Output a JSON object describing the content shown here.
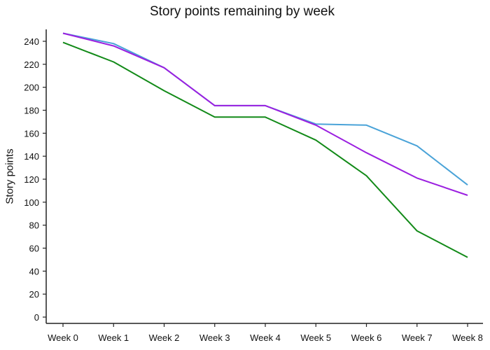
{
  "chart_data": {
    "type": "line",
    "title": "Story points remaining by week",
    "xlabel": "",
    "ylabel": "Story points",
    "categories": [
      "Week 0",
      "Week 1",
      "Week 2",
      "Week 3",
      "Week 4",
      "Week 5",
      "Week 6",
      "Week 7",
      "Week 8"
    ],
    "ylim": [
      -5,
      252
    ],
    "yticks": [
      0,
      20,
      40,
      60,
      80,
      100,
      120,
      140,
      160,
      180,
      200,
      220,
      240
    ],
    "grid": false,
    "legend": "none",
    "series": [
      {
        "color": "#4aa3d8",
        "values": [
          247,
          238,
          217,
          184,
          184,
          168,
          167,
          149,
          115
        ]
      },
      {
        "color": "#9b1fe0",
        "values": [
          247,
          236,
          217,
          184,
          184,
          167,
          143,
          121,
          106
        ]
      },
      {
        "color": "#128a18",
        "values": [
          239,
          222,
          197,
          174,
          174,
          154,
          123,
          75,
          52
        ]
      }
    ]
  }
}
